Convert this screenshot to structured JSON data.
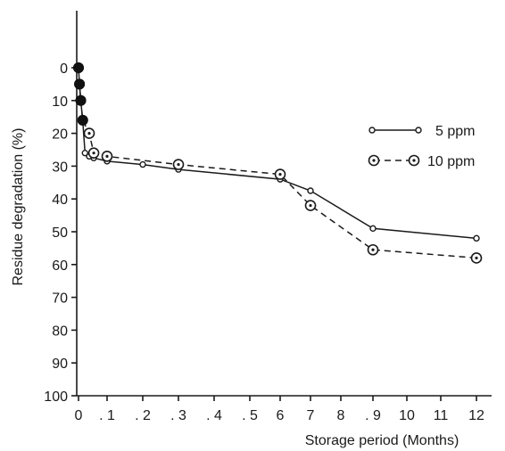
{
  "chart_data": {
    "type": "line",
    "title": "",
    "xlabel": "Storage period (Months)",
    "ylabel": "Residue degradation (%)",
    "ylim": [
      0,
      100
    ],
    "y_inverted": true,
    "y_ticks": [
      0,
      10,
      20,
      30,
      40,
      50,
      60,
      70,
      80,
      90,
      100
    ],
    "x_ticks": [
      {
        "label": "0"
      },
      {
        "label": ". 1"
      },
      {
        "label": ". 2"
      },
      {
        "label": ". 3"
      },
      {
        "label": ". 4"
      },
      {
        "label": ". 5"
      },
      {
        "label": "6"
      },
      {
        "label": "7"
      },
      {
        "label": "8"
      },
      {
        "label": ". 9"
      },
      {
        "label": "10"
      },
      {
        "label": "11"
      },
      {
        "label": "12"
      }
    ],
    "grid": false,
    "legend_position": "right",
    "series": [
      {
        "name": "5 ppm",
        "line_style": "solid",
        "marker": "small-open-circle",
        "points": [
          {
            "x": 0,
            "y": 0
          },
          {
            "x": 0.03,
            "y": 5
          },
          {
            "x": 0.07,
            "y": 10
          },
          {
            "x": 0.13,
            "y": 16
          },
          {
            "x": 0.2,
            "y": 26
          },
          {
            "x": 0.33,
            "y": 27
          },
          {
            "x": 0.5,
            "y": 27.5
          },
          {
            "x": 1,
            "y": 28.5
          },
          {
            "x": 2,
            "y": 29.5
          },
          {
            "x": 3,
            "y": 31
          },
          {
            "x": 6,
            "y": 34
          },
          {
            "x": 7,
            "y": 37.5
          },
          {
            "x": 9,
            "y": 49
          },
          {
            "x": 12,
            "y": 52
          }
        ]
      },
      {
        "name": "10 ppm",
        "line_style": "dashed",
        "marker": "large-dotted-circle",
        "points": [
          {
            "x": 0,
            "y": 0
          },
          {
            "x": 0.03,
            "y": 5
          },
          {
            "x": 0.07,
            "y": 10
          },
          {
            "x": 0.13,
            "y": 16
          },
          {
            "x": 0.33,
            "y": 20
          },
          {
            "x": 0.5,
            "y": 26
          },
          {
            "x": 1,
            "y": 27
          },
          {
            "x": 3,
            "y": 29.5
          },
          {
            "x": 6,
            "y": 32.5
          },
          {
            "x": 7,
            "y": 42
          },
          {
            "x": 9,
            "y": 55.5
          },
          {
            "x": 12,
            "y": 58
          }
        ]
      }
    ]
  }
}
